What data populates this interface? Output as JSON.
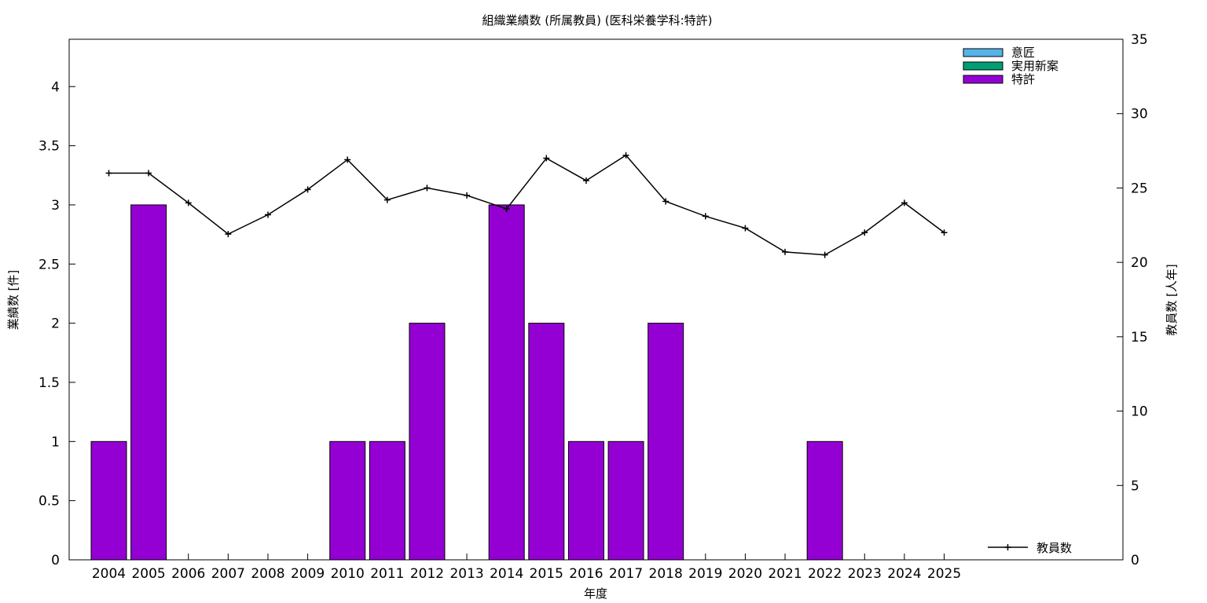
{
  "chart_data": {
    "type": "bar",
    "title": "組織業績数 (所属教員) (医科栄養学科:特許)",
    "xlabel": "年度",
    "ylabel": "業績数 [件]",
    "y2label": "教員数 [人年]",
    "categories": [
      "2004",
      "2005",
      "2006",
      "2007",
      "2008",
      "2009",
      "2010",
      "2011",
      "2012",
      "2013",
      "2014",
      "2015",
      "2016",
      "2017",
      "2018",
      "2019",
      "2020",
      "2021",
      "2022",
      "2023",
      "2024",
      "2025"
    ],
    "ylim": [
      0,
      4.4
    ],
    "yticks": [
      "0",
      "0.5",
      "1",
      "1.5",
      "2",
      "2.5",
      "3",
      "3.5",
      "4"
    ],
    "y2lim": [
      0,
      35
    ],
    "y2ticks": [
      "0",
      "5",
      "10",
      "15",
      "20",
      "25",
      "30",
      "35"
    ],
    "grid": false,
    "series": [
      {
        "name": "意匠",
        "color": "#56b4e9",
        "values": [
          0,
          0,
          0,
          0,
          0,
          0,
          0,
          0,
          0,
          0,
          0,
          0,
          0,
          0,
          0,
          0,
          0,
          0,
          0,
          0,
          0,
          0
        ]
      },
      {
        "name": "実用新案",
        "color": "#009e73",
        "values": [
          0,
          0,
          0,
          0,
          0,
          0,
          0,
          0,
          0,
          0,
          0,
          0,
          0,
          0,
          0,
          0,
          0,
          0,
          0,
          0,
          0,
          0
        ]
      },
      {
        "name": "特許",
        "color": "#9400d3",
        "values": [
          1,
          3,
          0,
          0,
          0,
          0,
          1,
          1,
          2,
          0,
          3,
          2,
          1,
          1,
          2,
          0,
          0,
          0,
          1,
          0,
          0,
          0
        ]
      }
    ],
    "line_series": {
      "name": "教員数",
      "axis": "right",
      "color": "#000000",
      "values": [
        26.0,
        26.0,
        24.0,
        21.9,
        23.2,
        24.9,
        26.9,
        24.2,
        25.0,
        24.5,
        23.6,
        27.0,
        25.5,
        27.2,
        24.1,
        23.1,
        22.3,
        20.7,
        20.5,
        22.0,
        24.0,
        22.0
      ]
    },
    "legend_position": "top-right",
    "line_legend_position": "bottom-right"
  }
}
